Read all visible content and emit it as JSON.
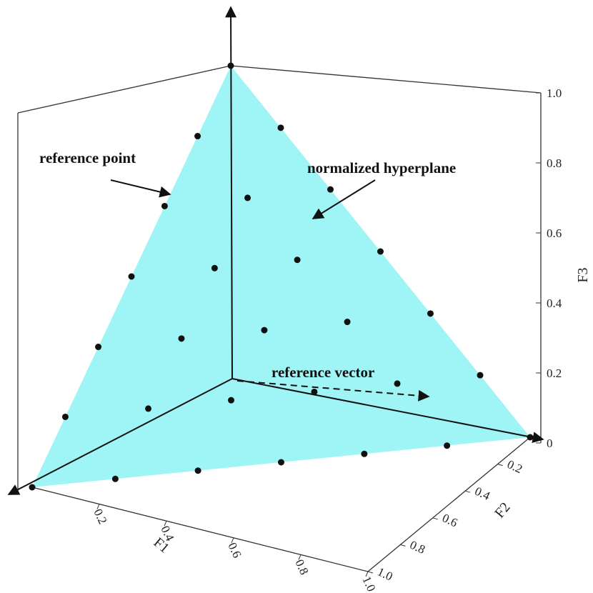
{
  "chart_data": {
    "type": "scatter3d",
    "x_label": "F1",
    "y_label": "F2",
    "z_label": "F3",
    "annotations": [
      "reference point",
      "normalized hyperplane",
      "reference vector"
    ],
    "plane_color": "#9ff5f5",
    "color": "#111111",
    "xlim": [
      0,
      1
    ],
    "ylim": [
      0,
      1
    ],
    "zlim": [
      0,
      1
    ],
    "xticks": [
      0.2,
      0.4,
      0.6,
      0.8,
      {
        "value": 1,
        "label": "1.0"
      }
    ],
    "yticks": [
      0.2,
      0.4,
      0.6,
      0.8,
      {
        "value": 1,
        "label": "1.0"
      }
    ],
    "zticks": [
      0,
      0.2,
      0.4,
      0.6,
      0.8,
      {
        "value": 1,
        "label": "1.0"
      }
    ],
    "points": {
      "x": [
        0,
        0,
        0,
        0,
        0,
        0,
        0,
        0.167,
        0.167,
        0.167,
        0.167,
        0.167,
        0.167,
        0.333,
        0.333,
        0.333,
        0.333,
        0.333,
        0.5,
        0.5,
        0.5,
        0.5,
        0.667,
        0.667,
        0.667,
        0.833,
        0.833,
        1
      ],
      "y": [
        0,
        0.167,
        0.333,
        0.5,
        0.667,
        0.833,
        1,
        0,
        0.167,
        0.333,
        0.5,
        0.667,
        0.833,
        0,
        0.167,
        0.333,
        0.5,
        0.667,
        0,
        0.167,
        0.333,
        0.5,
        0,
        0.167,
        0.333,
        0,
        0.167,
        0
      ],
      "z": [
        1,
        0.833,
        0.667,
        0.5,
        0.333,
        0.167,
        0,
        0.833,
        0.667,
        0.5,
        0.333,
        0.167,
        0,
        0.667,
        0.5,
        0.333,
        0.167,
        0,
        0.5,
        0.333,
        0.167,
        0,
        0.333,
        0.167,
        0,
        0.167,
        0,
        0
      ]
    }
  }
}
